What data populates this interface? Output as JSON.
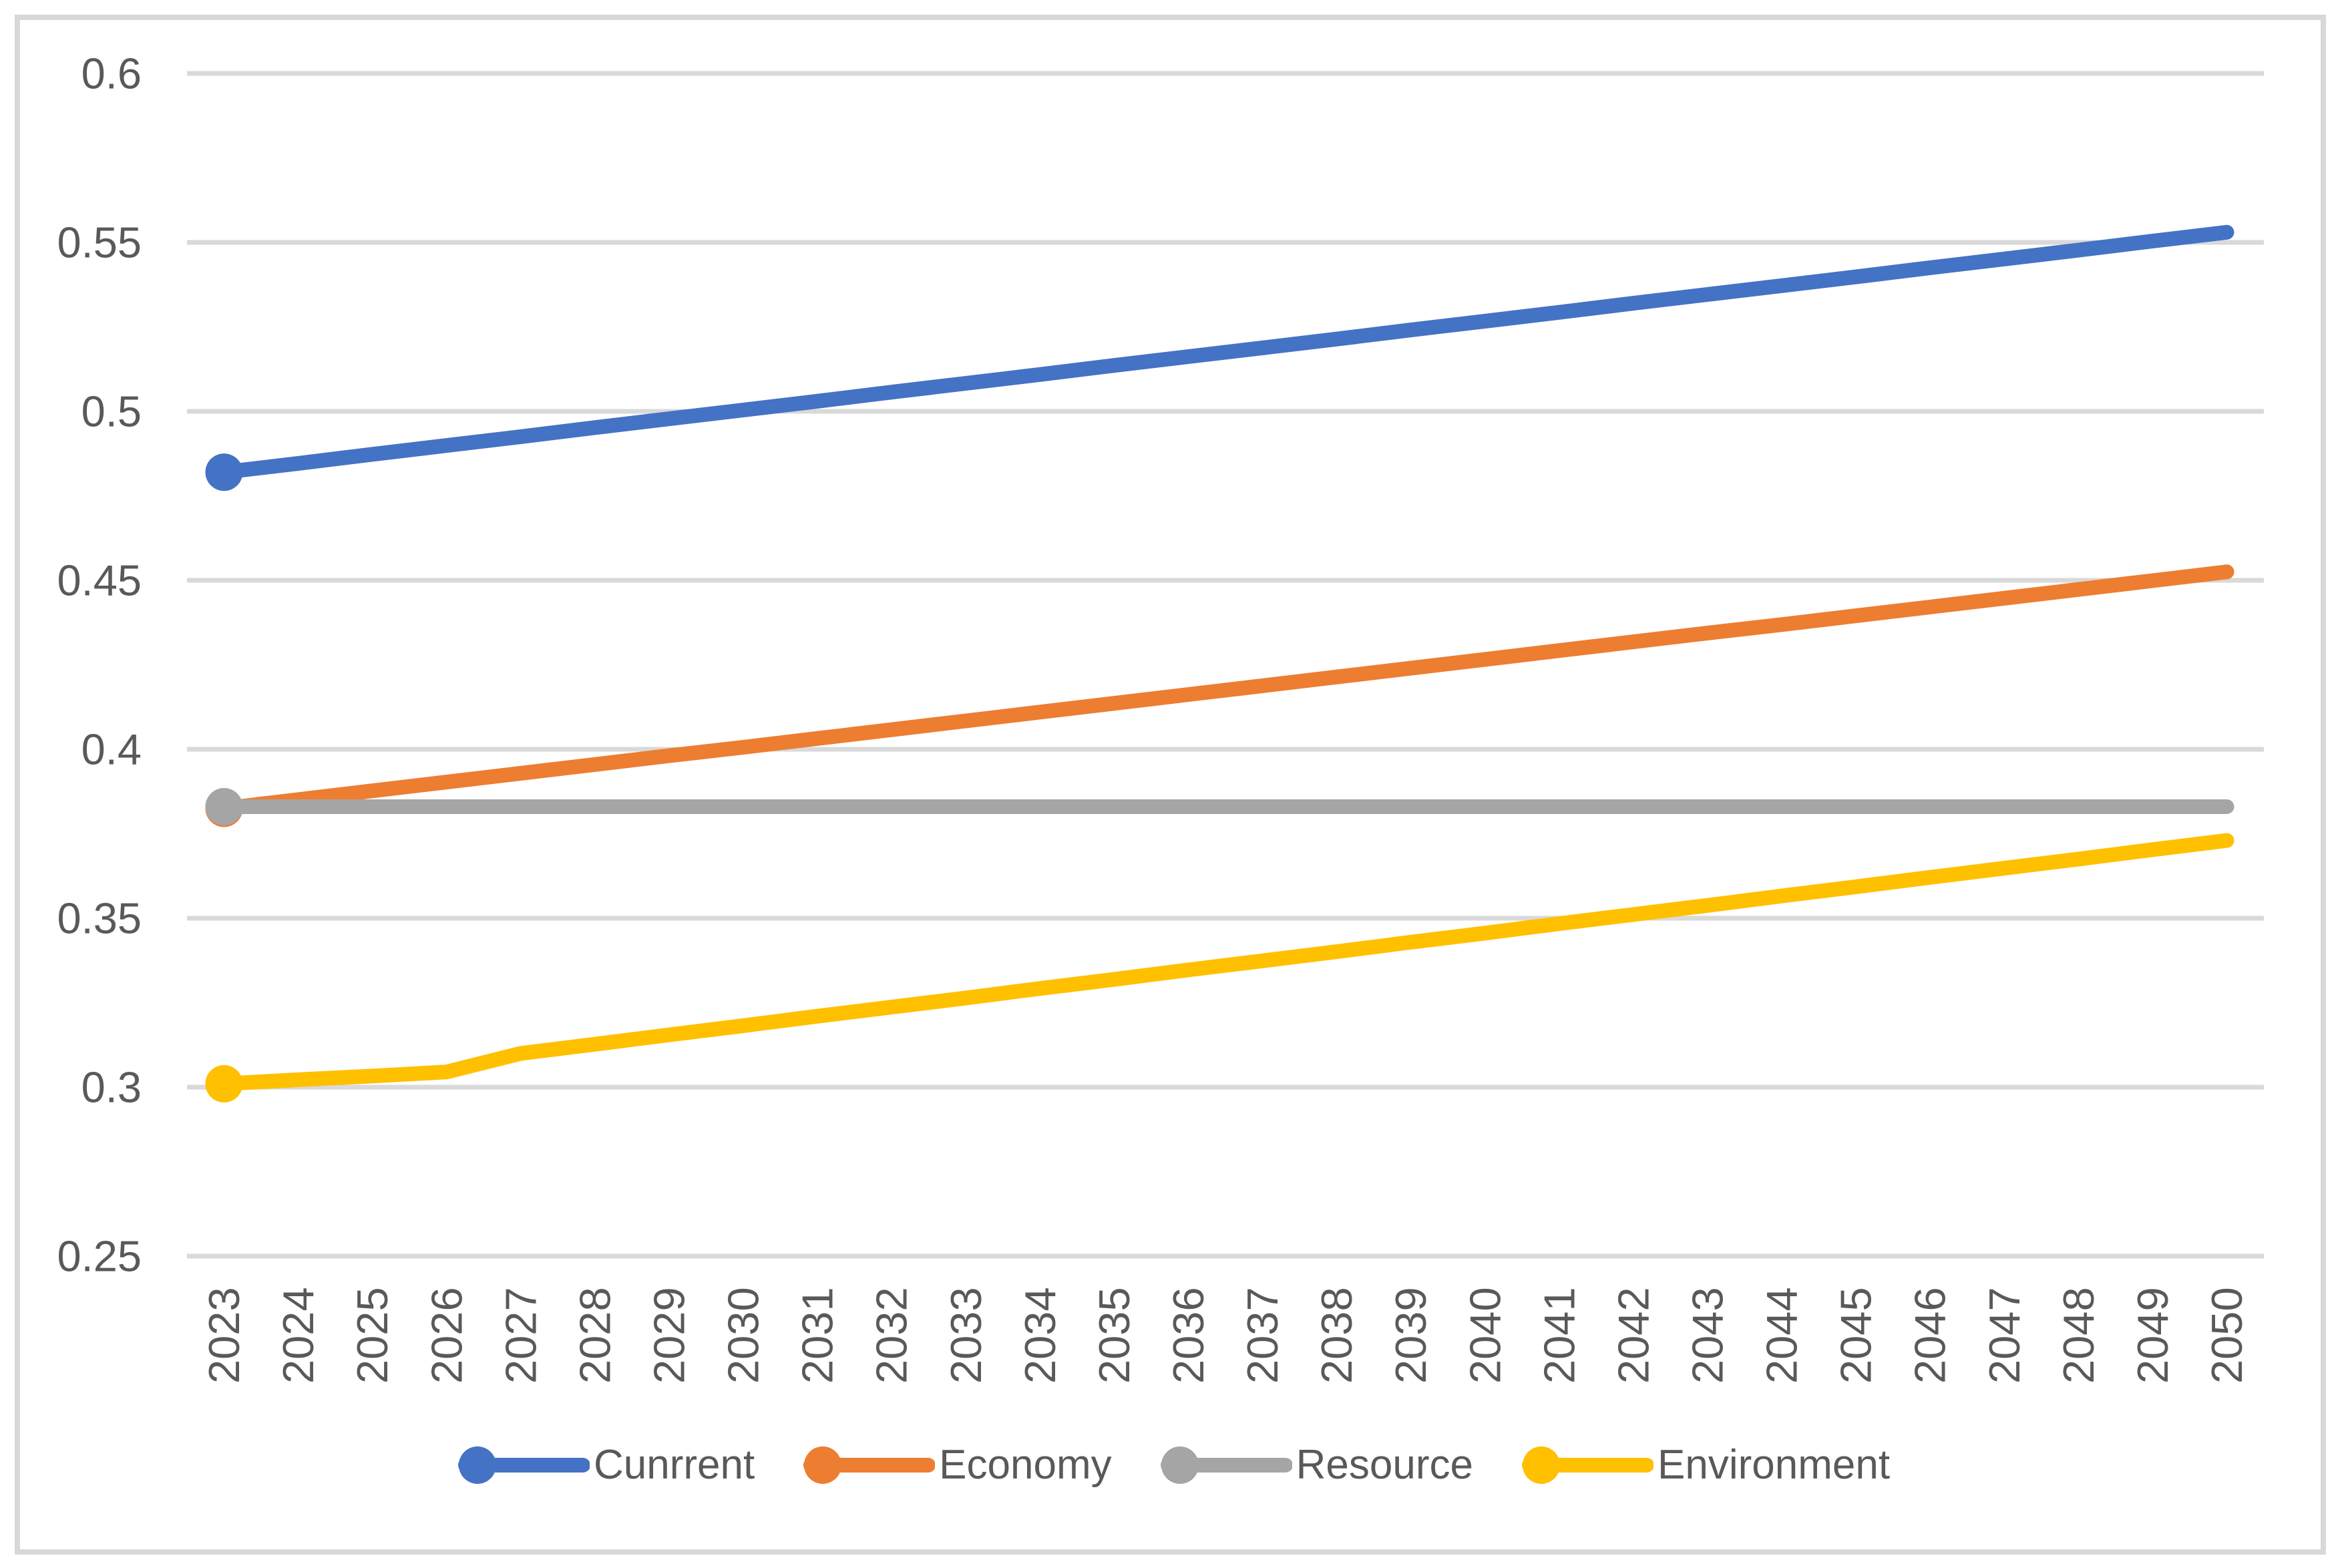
{
  "figure": {
    "background_color": "#FFFFFF",
    "border_color": "#D8D8D8"
  },
  "chart_data": {
    "type": "line",
    "title": "",
    "xlabel": "",
    "ylabel": "",
    "x": [
      2023,
      2024,
      2025,
      2026,
      2027,
      2028,
      2029,
      2030,
      2031,
      2032,
      2033,
      2034,
      2035,
      2036,
      2037,
      2038,
      2039,
      2040,
      2041,
      2042,
      2043,
      2044,
      2045,
      2046,
      2047,
      2048,
      2049,
      2050
    ],
    "series": [
      {
        "name": "Cunrrent",
        "color": "#4472C4",
        "values": [
          0.482,
          0.4846,
          0.4873,
          0.4899,
          0.4925,
          0.4952,
          0.4978,
          0.5004,
          0.503,
          0.5057,
          0.5083,
          0.5109,
          0.5136,
          0.5162,
          0.5188,
          0.5214,
          0.5241,
          0.5267,
          0.5293,
          0.532,
          0.5346,
          0.5372,
          0.5398,
          0.5425,
          0.5451,
          0.5477,
          0.5504,
          0.553
        ]
      },
      {
        "name": "Economy",
        "color": "#ED7D31",
        "values": [
          0.3825,
          0.3851,
          0.3877,
          0.3903,
          0.3929,
          0.3955,
          0.3981,
          0.4006,
          0.4032,
          0.4058,
          0.4084,
          0.411,
          0.4136,
          0.4162,
          0.4188,
          0.4214,
          0.424,
          0.4266,
          0.4292,
          0.4318,
          0.4344,
          0.4369,
          0.4395,
          0.4421,
          0.4447,
          0.4473,
          0.4499,
          0.4525
        ]
      },
      {
        "name": "Resource",
        "color": "#A5A5A5",
        "values": [
          0.383,
          0.383,
          0.383,
          0.383,
          0.383,
          0.383,
          0.383,
          0.383,
          0.383,
          0.383,
          0.383,
          0.383,
          0.383,
          0.383,
          0.383,
          0.383,
          0.383,
          0.383,
          0.383,
          0.383,
          0.383,
          0.383,
          0.383,
          0.383,
          0.383,
          0.383,
          0.383,
          0.383
        ]
      },
      {
        "name": "Environment",
        "color": "#FFC000",
        "values": [
          0.301,
          0.3022,
          0.3033,
          0.3045,
          0.31,
          0.3127,
          0.3155,
          0.3182,
          0.321,
          0.3237,
          0.3264,
          0.3292,
          0.3319,
          0.3347,
          0.3374,
          0.3401,
          0.3429,
          0.3456,
          0.3484,
          0.3511,
          0.3538,
          0.3566,
          0.3593,
          0.3621,
          0.3648,
          0.3675,
          0.3703,
          0.373
        ]
      }
    ],
    "ylim": [
      0.25,
      0.6
    ],
    "y_tick_step": 0.05,
    "y_ticks": [
      "0.6",
      "0.55",
      "0.5",
      "0.45",
      "0.4",
      "0.35",
      "0.3",
      "0.25"
    ],
    "y_tick_values": [
      0.6,
      0.55,
      0.5,
      0.45,
      0.4,
      0.35,
      0.3,
      0.25
    ],
    "grid": true,
    "gridline_color": "#D9D9D9",
    "axis_text_color": "#595959",
    "legend_position": "bottom",
    "marker": "circle-at-first-point",
    "x_label_rotation": -90
  }
}
